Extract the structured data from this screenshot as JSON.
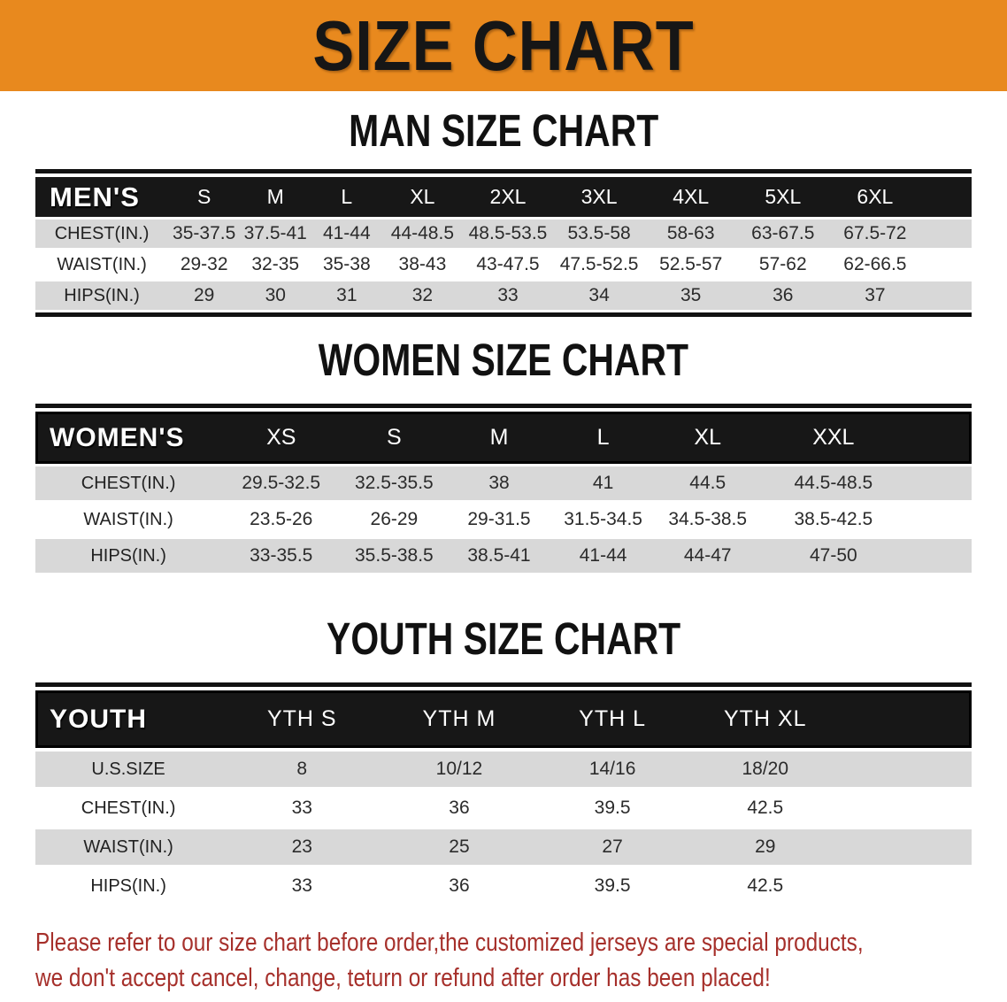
{
  "banner": {
    "title": "SIZE CHART"
  },
  "colors": {
    "banner_bg": "#E8891E",
    "header_bar": "#171717",
    "row_shade": "#D8D8D8",
    "footnote_text": "#A6302B"
  },
  "sections": [
    {
      "heading": "MAN SIZE CHART",
      "table": {
        "header_label": "MEN'S",
        "columns": [
          "S",
          "M",
          "L",
          "XL",
          "2XL",
          "3XL",
          "4XL",
          "5XL",
          "6XL"
        ],
        "rows": [
          {
            "label": "CHEST(IN.)",
            "values": [
              "35-37.5",
              "37.5-41",
              "41-44",
              "44-48.5",
              "48.5-53.5",
              "53.5-58",
              "58-63",
              "63-67.5",
              "67.5-72"
            ]
          },
          {
            "label": "WAIST(IN.)",
            "values": [
              "29-32",
              "32-35",
              "35-38",
              "38-43",
              "43-47.5",
              "47.5-52.5",
              "52.5-57",
              "57-62",
              "62-66.5"
            ]
          },
          {
            "label": "HIPS(IN.)",
            "values": [
              "29",
              "30",
              "31",
              "32",
              "33",
              "34",
              "35",
              "36",
              "37"
            ]
          }
        ]
      }
    },
    {
      "heading": "WOMEN SIZE CHART",
      "table": {
        "header_label": "WOMEN'S",
        "columns": [
          "XS",
          "S",
          "M",
          "L",
          "XL",
          "XXL"
        ],
        "rows": [
          {
            "label": "CHEST(IN.)",
            "values": [
              "29.5-32.5",
              "32.5-35.5",
              "38",
              "41",
              "44.5",
              "44.5-48.5"
            ]
          },
          {
            "label": "WAIST(IN.)",
            "values": [
              "23.5-26",
              "26-29",
              "29-31.5",
              "31.5-34.5",
              "34.5-38.5",
              "38.5-42.5"
            ]
          },
          {
            "label": "HIPS(IN.)",
            "values": [
              "33-35.5",
              "35.5-38.5",
              "38.5-41",
              "41-44",
              "44-47",
              "47-50"
            ]
          }
        ]
      }
    },
    {
      "heading": "YOUTH SIZE CHART",
      "table": {
        "header_label": "YOUTH",
        "columns": [
          "YTH S",
          "YTH M",
          "YTH L",
          "YTH XL"
        ],
        "rows": [
          {
            "label": "U.S.SIZE",
            "values": [
              "8",
              "10/12",
              "14/16",
              "18/20"
            ]
          },
          {
            "label": "CHEST(IN.)",
            "values": [
              "33",
              "36",
              "39.5",
              "42.5"
            ]
          },
          {
            "label": "WAIST(IN.)",
            "values": [
              "23",
              "25",
              "27",
              "29"
            ]
          },
          {
            "label": "HIPS(IN.)",
            "values": [
              "33",
              "36",
              "39.5",
              "42.5"
            ]
          }
        ]
      }
    }
  ],
  "footnote": {
    "line1": "Please refer to our size chart before order,the customized jerseys are special products,",
    "line2": "we don't accept cancel, change, teturn or refund after order has been placed!"
  }
}
